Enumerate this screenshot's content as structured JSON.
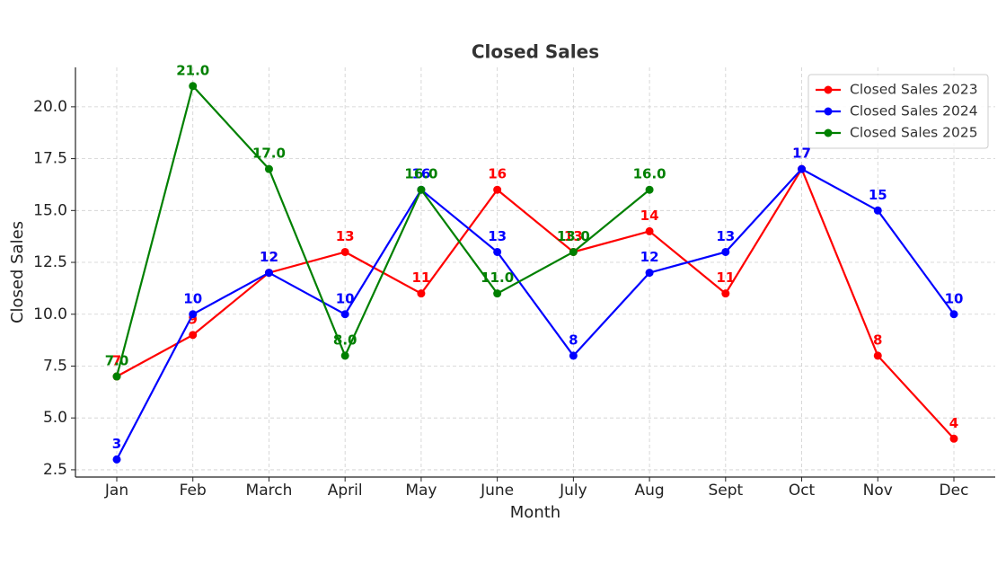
{
  "chart_data": {
    "type": "line",
    "title": "Closed Sales",
    "x_label": "Month",
    "y_label": "Closed Sales",
    "categories": [
      "Jan",
      "Feb",
      "March",
      "April",
      "May",
      "June",
      "July",
      "Aug",
      "Sept",
      "Oct",
      "Nov",
      "Dec"
    ],
    "series": [
      {
        "name": "Closed Sales 2023",
        "color": "#ff0000",
        "values": [
          7,
          9,
          12,
          13,
          11,
          16,
          13,
          14,
          11,
          17,
          8,
          4
        ]
      },
      {
        "name": "Closed Sales 2024",
        "color": "#0000ff",
        "values": [
          3,
          10,
          12,
          10,
          16,
          13,
          8,
          12,
          13,
          17,
          15,
          10
        ]
      },
      {
        "name": "Closed Sales 2025",
        "color": "#008000",
        "values": [
          7,
          21,
          17,
          8,
          16,
          11,
          13,
          16,
          null,
          null,
          null,
          null
        ],
        "value_labels": [
          "7.0",
          "21.0",
          "17.0",
          "8.0",
          "16.0",
          "11.0",
          "13.0",
          "16.0",
          null,
          null,
          null,
          null
        ]
      }
    ],
    "ylim": [
      2.15,
      21.9
    ],
    "yticks": [
      2.5,
      {
        "value": 5,
        "label": "5.0"
      },
      7.5,
      {
        "value": 10,
        "label": "10.0"
      },
      12.5,
      {
        "value": 15,
        "label": "15.0"
      },
      17.5,
      {
        "value": 20,
        "label": "20.0"
      }
    ],
    "grid": true,
    "legend": "upper right"
  }
}
